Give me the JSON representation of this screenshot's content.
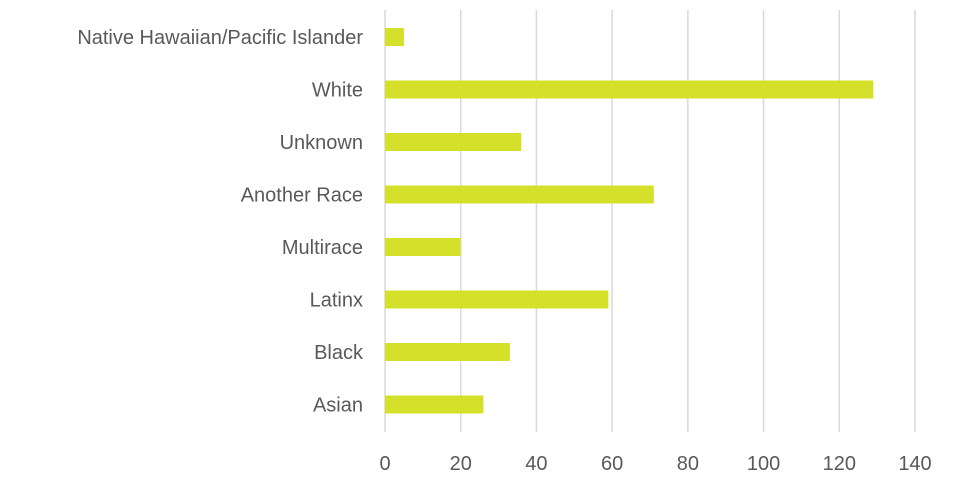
{
  "chart_data": {
    "type": "bar",
    "orientation": "horizontal",
    "categories": [
      "Native Hawaiian/Pacific Islander",
      "White",
      "Unknown",
      "Another Race",
      "Multirace",
      "Latinx",
      "Black",
      "Asian"
    ],
    "values": [
      5,
      129,
      36,
      71,
      20,
      59,
      33,
      26
    ],
    "xlim": [
      0,
      140
    ],
    "xticks": [
      0,
      20,
      40,
      60,
      80,
      100,
      120,
      140
    ],
    "grid": "vertical",
    "legend": "none",
    "colors": {
      "bar": "#d5e02a",
      "grid": "#d9d9d9",
      "text": "#595959"
    }
  }
}
